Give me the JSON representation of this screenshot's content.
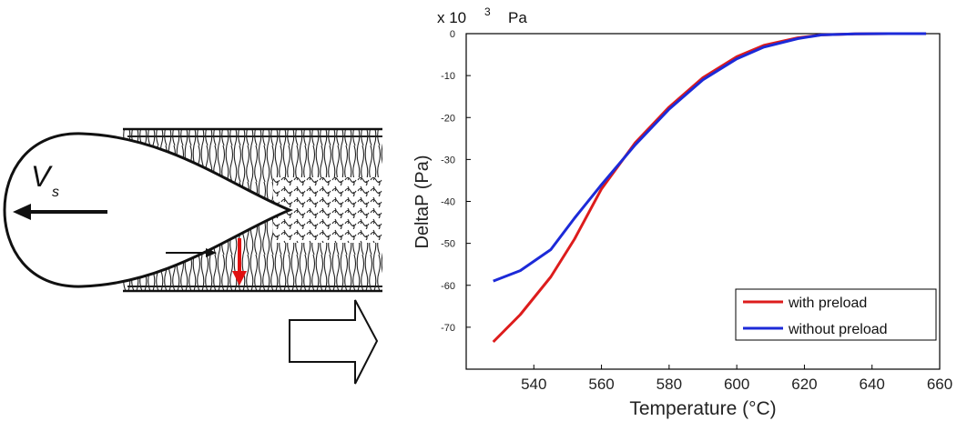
{
  "figure": {
    "weld_diagram": {
      "velocity_label": {
        "symbol": "V",
        "subscript": "s"
      },
      "colors": {
        "outline": "#111111",
        "arrow_highlight": "#e01010"
      }
    },
    "transition_arrow": {
      "icon": "hollow-right-arrow-icon"
    }
  },
  "chart_data": {
    "type": "line",
    "exponent_label": {
      "base": "x 10",
      "power": "3",
      "unit": "Pa"
    },
    "xlabel": "Temperature (°C)",
    "ylabel": "DeltaP (Pa)",
    "xlim": [
      520,
      660
    ],
    "ylim": [
      -80,
      0
    ],
    "xticks": [
      540,
      560,
      580,
      600,
      620,
      640,
      660
    ],
    "yticks": [
      0,
      -10,
      -20,
      -30,
      -40,
      -50,
      -60,
      -70
    ],
    "grid": false,
    "legend": {
      "placement": "bottom-right"
    },
    "series": [
      {
        "name": "with preload",
        "color": "#dd1c1c",
        "x": [
          528,
          536,
          545,
          552,
          560,
          570,
          580,
          590,
          600,
          608,
          618,
          625,
          635,
          645,
          656
        ],
        "y": [
          -73.5,
          -67,
          -58,
          -49,
          -37,
          -26,
          -17.5,
          -10.5,
          -5.5,
          -2.8,
          -1.0,
          -0.3,
          -0.05,
          0,
          0
        ]
      },
      {
        "name": "without preload",
        "color": "#1c2ad8",
        "x": [
          528,
          536,
          545,
          552,
          560,
          570,
          580,
          590,
          600,
          608,
          618,
          625,
          635,
          645,
          656
        ],
        "y": [
          -59,
          -56.5,
          -51.5,
          -44,
          -36,
          -26.5,
          -18,
          -11,
          -6,
          -3.2,
          -1.2,
          -0.3,
          -0.05,
          0,
          0
        ]
      }
    ]
  }
}
